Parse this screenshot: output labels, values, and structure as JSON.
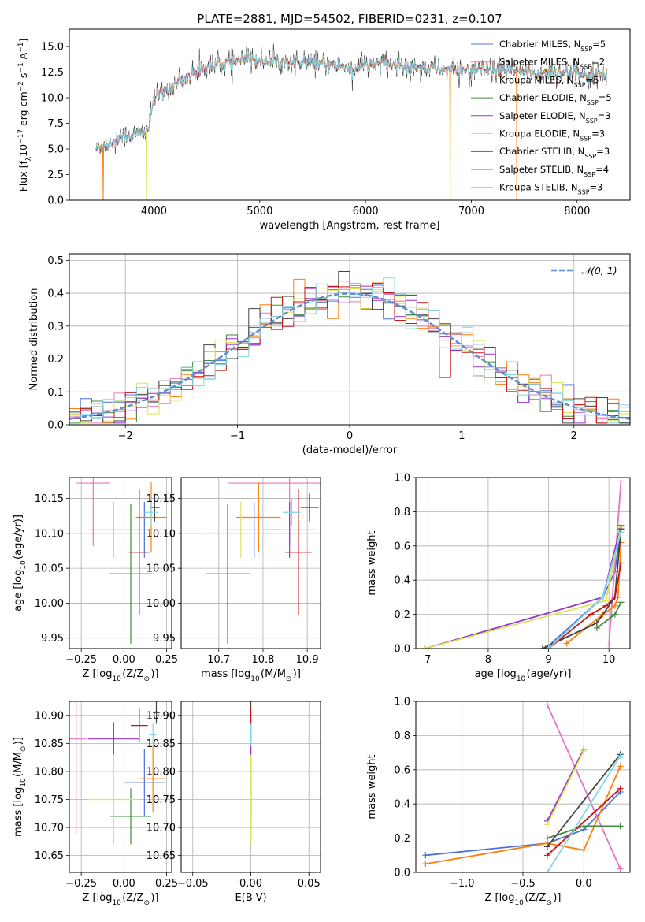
{
  "chart_data": [
    {
      "type": "line",
      "title": "PLATE=2881, MJD=54502, FIBERID=0231, z=0.107",
      "xlabel": "wavelength [Angstrom, rest frame]",
      "ylabel": "Flux [f$_\\lambda$10$^{-17}$ erg cm$^{-2}$ s$^{-1}$ A$^{-1}$]",
      "ylabel_parts": [
        "Flux [f",
        "λ",
        "10",
        "−17",
        " erg cm",
        "−2",
        " s",
        "−1",
        " A",
        "−1",
        "]"
      ],
      "xlim": [
        3200,
        8500
      ],
      "ylim": [
        0,
        16.7
      ],
      "xticks": [
        "4000",
        "5000",
        "6000",
        "7000",
        "8000"
      ],
      "yticks": [
        "0.0",
        "2.5",
        "5.0",
        "7.5",
        "10.0",
        "12.5",
        "15.0"
      ],
      "continuum": {
        "x": [
          3450,
          3500,
          3600,
          3700,
          3800,
          3900,
          3950,
          4000,
          4100,
          4200,
          4300,
          4400,
          4500,
          4700,
          4900,
          5100,
          5300,
          5500,
          5700,
          5900,
          6100,
          6300,
          6500,
          6700,
          6900,
          7100,
          7300,
          7500,
          7700,
          7900,
          8100,
          8280
        ],
        "y": [
          4.9,
          5.3,
          5.6,
          6.2,
          6.4,
          6.6,
          7.0,
          10.0,
          10.6,
          11.4,
          11.9,
          12.6,
          13.0,
          13.4,
          13.8,
          13.6,
          13.5,
          13.4,
          13.2,
          12.9,
          13.4,
          13.2,
          13.0,
          12.8,
          12.7,
          12.7,
          12.6,
          12.5,
          12.4,
          12.5,
          12.4,
          12.3
        ]
      },
      "dips_to_zero_at": [
        3520,
        3930,
        6800,
        7430
      ],
      "series": [
        {
          "name": "Chabrier MILES, N$_{SSP}$=5",
          "label": "Chabrier MILES, N",
          "sub": "SSP",
          "tail": "=5",
          "color": "#4c72d9"
        },
        {
          "name": "Salpeter MILES, N$_{SSP}$=2",
          "label": "Salpeter MILES, N",
          "sub": "SSP",
          "tail": "=2",
          "color": "#e377c2"
        },
        {
          "name": "Kroupa MILES, N$_{SSP}$=5",
          "label": "Kroupa MILES, N",
          "sub": "SSP",
          "tail": "=5",
          "color": "#ff7f0e"
        },
        {
          "name": "Chabrier ELODIE, N$_{SSP}$=5",
          "label": "Chabrier ELODIE, N",
          "sub": "SSP",
          "tail": "=5",
          "color": "#3d8b3d"
        },
        {
          "name": "Salpeter ELODIE, N$_{SSP}$=3",
          "label": "Salpeter ELODIE, N",
          "sub": "SSP",
          "tail": "=3",
          "color": "#9932cc"
        },
        {
          "name": "Kroupa ELODIE, N$_{SSP}$=3",
          "label": "Kroupa ELODIE, N",
          "sub": "SSP",
          "tail": "=3",
          "color": "#dde35a"
        },
        {
          "name": "Chabrier STELIB, N$_{SSP}$=3",
          "label": "Chabrier STELIB, N",
          "sub": "SSP",
          "tail": "=3",
          "color": "#444444"
        },
        {
          "name": "Salpeter STELIB, N$_{SSP}$=4",
          "label": "Salpeter STELIB, N",
          "sub": "SSP",
          "tail": "=4",
          "color": "#c81414"
        },
        {
          "name": "Kroupa STELIB, N$_{SSP}$=3",
          "label": "Kroupa STELIB, N",
          "sub": "SSP",
          "tail": "=3",
          "color": "#7fd8e6"
        }
      ],
      "legend": "upper-right"
    },
    {
      "type": "histogram",
      "xlabel": "(data-model)/error",
      "ylabel": "Normed distribution",
      "xlim": [
        -2.5,
        2.5
      ],
      "ylim": [
        0,
        0.52
      ],
      "xticks": [
        "−2",
        "−1",
        "0",
        "1",
        "2"
      ],
      "yticks": [
        "0.0",
        "0.1",
        "0.2",
        "0.3",
        "0.4",
        "0.5"
      ],
      "bin_width": 0.1,
      "grid": true,
      "reference_curve": {
        "name": "$\\mathcal{N}(0,1)$",
        "label": "𝒩(0, 1)",
        "color": "#5b8ed6",
        "style": "dashed",
        "mean": 0,
        "sigma": 1
      },
      "legend": "upper-right"
    },
    {
      "type": "scatter",
      "xlabel": "Z [log$_{10}$(Z/Z$_\\odot$)]",
      "ylabel": "age  [log$_{10}$(age/yr)]",
      "xlim": [
        -0.32,
        0.28
      ],
      "ylim": [
        9.935,
        10.18
      ],
      "xticks": [
        "−0.25",
        "0.00",
        "0.25"
      ],
      "yticks": [
        "9.95",
        "10.00",
        "10.05",
        "10.10",
        "10.15"
      ],
      "grid": true,
      "points": [
        {
          "series": "Chabrier MILES",
          "x": 0.12,
          "y": 10.105,
          "xerr": 0.12,
          "yerr": 0.04
        },
        {
          "series": "Salpeter MILES",
          "x": -0.18,
          "y": 10.172,
          "xerr": 0.1,
          "yerr": 0.09
        },
        {
          "series": "Kroupa MILES",
          "x": 0.16,
          "y": 10.123,
          "xerr": 0.09,
          "yerr": 0.05
        },
        {
          "series": "Chabrier ELODIE",
          "x": 0.04,
          "y": 10.042,
          "xerr": 0.13,
          "yerr": 0.1
        },
        {
          "series": "Salpeter ELODIE",
          "x": -0.06,
          "y": 10.105,
          "xerr": 0.15,
          "yerr": 0.04
        },
        {
          "series": "Kroupa ELODIE",
          "x": -0.06,
          "y": 10.105,
          "xerr": 0.15,
          "yerr": 0.04
        },
        {
          "series": "Chabrier STELIB",
          "x": 0.18,
          "y": 10.137,
          "xerr": 0.03,
          "yerr": 0.02
        },
        {
          "series": "Salpeter STELIB",
          "x": 0.09,
          "y": 10.073,
          "xerr": 0.06,
          "yerr": 0.09
        },
        {
          "series": "Kroupa STELIB",
          "x": 0.16,
          "y": 10.13,
          "xerr": 0.04,
          "yerr": 0.02
        }
      ]
    },
    {
      "type": "scatter",
      "xlabel": "mass [log$_{10}$(M/M$_\\odot$)]",
      "ylabel": "",
      "xlim": [
        10.615,
        10.93
      ],
      "ylim": [
        9.935,
        10.18
      ],
      "xticks": [
        "10.7",
        "10.8",
        "10.9"
      ],
      "yticks": [
        "9.95",
        "10.00",
        "10.05",
        "10.10",
        "10.15"
      ],
      "grid": true,
      "points": [
        {
          "series": "Chabrier MILES",
          "x": 10.78,
          "y": 10.105,
          "xerr": 0.06,
          "yerr": 0.04
        },
        {
          "series": "Salpeter MILES",
          "x": 10.86,
          "y": 10.172,
          "xerr": 0.14,
          "yerr": 0.09
        },
        {
          "series": "Kroupa MILES",
          "x": 10.79,
          "y": 10.123,
          "xerr": 0.05,
          "yerr": 0.05
        },
        {
          "series": "Chabrier ELODIE",
          "x": 10.72,
          "y": 10.042,
          "xerr": 0.05,
          "yerr": 0.1
        },
        {
          "series": "Salpeter ELODIE",
          "x": 10.86,
          "y": 10.105,
          "xerr": 0.06,
          "yerr": 0.04
        },
        {
          "series": "Kroupa ELODIE",
          "x": 10.75,
          "y": 10.105,
          "xerr": 0.08,
          "yerr": 0.04
        },
        {
          "series": "Chabrier STELIB",
          "x": 10.905,
          "y": 10.137,
          "xerr": 0.02,
          "yerr": 0.02
        },
        {
          "series": "Salpeter STELIB",
          "x": 10.88,
          "y": 10.073,
          "xerr": 0.03,
          "yerr": 0.09
        },
        {
          "series": "Kroupa STELIB",
          "x": 10.865,
          "y": 10.13,
          "xerr": 0.02,
          "yerr": 0.02
        }
      ]
    },
    {
      "type": "line",
      "xlabel": "age  [log$_{10}$(age/yr)]",
      "ylabel": "mass weight",
      "xlim": [
        6.8,
        10.35
      ],
      "ylim": [
        0,
        1
      ],
      "xticks": [
        "7",
        "8",
        "9",
        "10"
      ],
      "yticks": [
        "0.0",
        "0.2",
        "0.4",
        "0.6",
        "0.8",
        "1.0"
      ],
      "grid": true,
      "series": [
        {
          "name": "Chabrier MILES",
          "x": [
            8.95,
            9.9,
            10.1,
            10.2
          ],
          "y": [
            0.0,
            0.3,
            0.45,
            0.7
          ]
        },
        {
          "name": "Salpeter MILES",
          "x": [
            10.0,
            10.2
          ],
          "y": [
            0.02,
            0.98
          ]
        },
        {
          "name": "Kroupa MILES",
          "x": [
            9.3,
            9.9,
            10.1,
            10.15,
            10.2
          ],
          "y": [
            0.03,
            0.2,
            0.25,
            0.3,
            0.62
          ]
        },
        {
          "name": "Chabrier ELODIE",
          "x": [
            9.8,
            10.1,
            10.2
          ],
          "y": [
            0.12,
            0.2,
            0.27
          ]
        },
        {
          "name": "Salpeter ELODIE",
          "x": [
            6.95,
            9.9,
            10.2
          ],
          "y": [
            0.0,
            0.3,
            0.72
          ]
        },
        {
          "name": "Kroupa ELODIE",
          "x": [
            6.95,
            9.95,
            10.2
          ],
          "y": [
            0.0,
            0.28,
            0.71
          ]
        },
        {
          "name": "Chabrier STELIB",
          "x": [
            8.9,
            9.8,
            10.1,
            10.2
          ],
          "y": [
            0.0,
            0.15,
            0.3,
            0.7
          ]
        },
        {
          "name": "Salpeter STELIB",
          "x": [
            9.0,
            9.7,
            9.95,
            10.1,
            10.2
          ],
          "y": [
            0.0,
            0.2,
            0.25,
            0.3,
            0.5
          ]
        },
        {
          "name": "Kroupa STELIB",
          "x": [
            9.0,
            9.9,
            10.2
          ],
          "y": [
            0.0,
            0.3,
            0.68
          ]
        }
      ]
    },
    {
      "type": "scatter",
      "xlabel": "Z [log$_{10}$(Z/Z$_\\odot$)]",
      "ylabel": "mass [log$_{10}$(M/M$_\\odot$)]",
      "xlim": [
        -0.32,
        0.28
      ],
      "ylim": [
        10.62,
        10.925
      ],
      "xticks": [
        "−0.25",
        "0.00",
        "0.25"
      ],
      "yticks": [
        "10.65",
        "10.70",
        "10.75",
        "10.80",
        "10.85",
        "10.90"
      ],
      "grid": true,
      "points": [
        {
          "series": "Chabrier MILES",
          "x": 0.12,
          "y": 10.78,
          "xerr": 0.12,
          "yerr": 0.06
        },
        {
          "series": "Salpeter MILES",
          "x": -0.28,
          "y": 10.858,
          "xerr": 0.06,
          "yerr": 0.17
        },
        {
          "series": "Kroupa MILES",
          "x": 0.17,
          "y": 10.787,
          "xerr": 0.08,
          "yerr": 0.06
        },
        {
          "series": "Chabrier ELODIE",
          "x": 0.04,
          "y": 10.72,
          "xerr": 0.12,
          "yerr": 0.05
        },
        {
          "series": "Salpeter ELODIE",
          "x": -0.06,
          "y": 10.858,
          "xerr": 0.15,
          "yerr": 0.03
        },
        {
          "series": "Kroupa ELODIE",
          "x": -0.06,
          "y": 10.75,
          "xerr": 0.15,
          "yerr": 0.08
        },
        {
          "series": "Chabrier STELIB",
          "x": 0.19,
          "y": 10.905,
          "xerr": 0.02,
          "yerr": 0.02
        },
        {
          "series": "Salpeter STELIB",
          "x": 0.09,
          "y": 10.882,
          "xerr": 0.05,
          "yerr": 0.03
        },
        {
          "series": "Kroupa STELIB",
          "x": 0.17,
          "y": 10.865,
          "xerr": 0.02,
          "yerr": 0.02
        }
      ]
    },
    {
      "type": "scatter",
      "xlabel": "E(B-V)",
      "ylabel": "",
      "xlim": [
        -0.06,
        0.06
      ],
      "ylim": [
        10.62,
        10.925
      ],
      "xticks": [
        "−0.05",
        "0.00",
        "0.05"
      ],
      "yticks": [
        "10.65",
        "10.70",
        "10.75",
        "10.80",
        "10.85",
        "10.90"
      ],
      "grid": true,
      "points": [
        {
          "series": "Chabrier MILES",
          "x": 0,
          "y": 10.78,
          "yerr": 0.06
        },
        {
          "series": "Salpeter MILES",
          "x": 0,
          "y": 10.858,
          "yerr": 0.17
        },
        {
          "series": "Kroupa MILES",
          "x": 0,
          "y": 10.787,
          "yerr": 0.06
        },
        {
          "series": "Chabrier ELODIE",
          "x": 0,
          "y": 10.72,
          "yerr": 0.05
        },
        {
          "series": "Salpeter ELODIE",
          "x": 0,
          "y": 10.858,
          "yerr": 0.03
        },
        {
          "series": "Kroupa ELODIE",
          "x": 0,
          "y": 10.75,
          "yerr": 0.08
        },
        {
          "series": "Chabrier STELIB",
          "x": 0,
          "y": 10.905,
          "yerr": 0.02
        },
        {
          "series": "Salpeter STELIB",
          "x": 0,
          "y": 10.882,
          "yerr": 0.03
        },
        {
          "series": "Kroupa STELIB",
          "x": 0,
          "y": 10.865,
          "yerr": 0.02
        }
      ]
    },
    {
      "type": "line",
      "xlabel": "Z [log$_{10}$(Z/Z$_\\odot$)]",
      "ylabel": "mass weight",
      "xlim": [
        -1.38,
        0.38
      ],
      "ylim": [
        0,
        1
      ],
      "xticks": [
        "−1.0",
        "−0.5",
        "0.0"
      ],
      "yticks": [
        "0.0",
        "0.2",
        "0.4",
        "0.6",
        "0.8",
        "1.0"
      ],
      "grid": true,
      "series": [
        {
          "name": "Chabrier MILES",
          "x": [
            -1.3,
            -0.3,
            0.0,
            0.3
          ],
          "y": [
            0.1,
            0.17,
            0.25,
            0.47
          ]
        },
        {
          "name": "Salpeter MILES",
          "x": [
            -0.3,
            0.3
          ],
          "y": [
            0.98,
            0.02
          ]
        },
        {
          "name": "Kroupa MILES",
          "x": [
            -1.3,
            -0.3,
            0.0,
            0.3
          ],
          "y": [
            0.05,
            0.17,
            0.13,
            0.62
          ]
        },
        {
          "name": "Chabrier ELODIE",
          "x": [
            -0.3,
            0.0,
            0.3
          ],
          "y": [
            0.2,
            0.27,
            0.27
          ]
        },
        {
          "name": "Salpeter ELODIE",
          "x": [
            -0.3,
            0.0
          ],
          "y": [
            0.3,
            0.72
          ]
        },
        {
          "name": "Kroupa ELODIE",
          "x": [
            -0.3,
            0.0
          ],
          "y": [
            0.28,
            0.71
          ]
        },
        {
          "name": "Chabrier STELIB",
          "x": [
            -0.3,
            0.3
          ],
          "y": [
            0.15,
            0.69
          ]
        },
        {
          "name": "Salpeter STELIB",
          "x": [
            -0.3,
            0.3
          ],
          "y": [
            0.1,
            0.49
          ]
        },
        {
          "name": "Kroupa STELIB",
          "x": [
            -0.3,
            0.3
          ],
          "y": [
            0.0,
            0.68
          ]
        }
      ]
    }
  ]
}
